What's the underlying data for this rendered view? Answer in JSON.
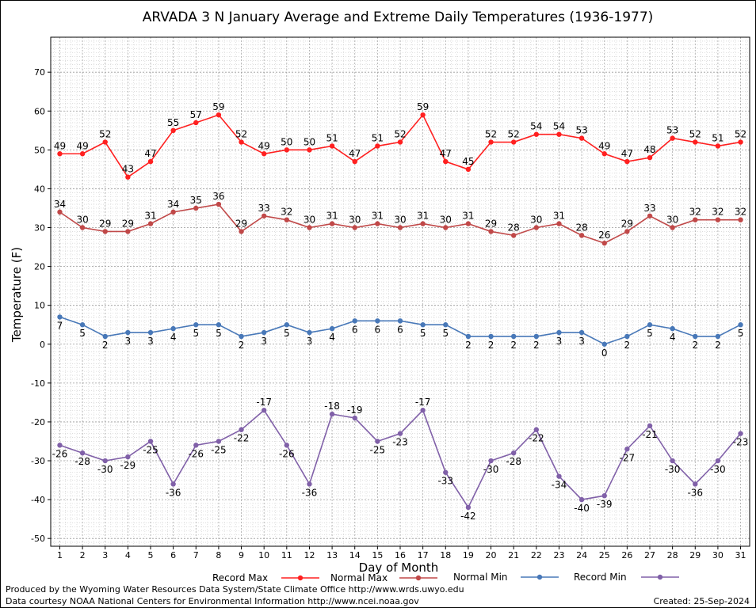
{
  "chart_data": {
    "type": "line",
    "title": "ARVADA 3 N January Average and Extreme Daily Temperatures (1936-1977)",
    "xlabel": "Day of Month",
    "ylabel": "Temperature (F)",
    "x": [
      1,
      2,
      3,
      4,
      5,
      6,
      7,
      8,
      9,
      10,
      11,
      12,
      13,
      14,
      15,
      16,
      17,
      18,
      19,
      20,
      21,
      22,
      23,
      24,
      25,
      26,
      27,
      28,
      29,
      30,
      31
    ],
    "xlim": [
      0.6,
      31.4
    ],
    "ylim": [
      -52,
      79
    ],
    "yticks": [
      -50,
      -40,
      -30,
      -20,
      -10,
      0,
      10,
      20,
      30,
      40,
      50,
      60,
      70
    ],
    "grid": true,
    "legend": "bottom",
    "series": [
      {
        "name": "Record Max",
        "color": "#ff2020",
        "values": [
          49,
          49,
          52,
          43,
          47,
          55,
          57,
          59,
          52,
          49,
          50,
          50,
          51,
          47,
          51,
          52,
          59,
          47,
          45,
          52,
          52,
          54,
          54,
          53,
          49,
          47,
          48,
          53,
          52,
          51,
          52
        ]
      },
      {
        "name": "Normal Max",
        "color": "#c04848",
        "values": [
          34,
          30,
          29,
          29,
          31,
          34,
          35,
          36,
          29,
          33,
          32,
          30,
          31,
          30,
          31,
          30,
          31,
          30,
          31,
          29,
          28,
          30,
          31,
          28,
          26,
          29,
          33,
          30,
          32,
          32,
          32
        ]
      },
      {
        "name": "Normal Min",
        "color": "#4878b8",
        "values": [
          7,
          5,
          2,
          3,
          3,
          4,
          5,
          5,
          2,
          3,
          5,
          3,
          4,
          6,
          6,
          6,
          5,
          5,
          2,
          2,
          2,
          2,
          3,
          3,
          0,
          2,
          5,
          4,
          2,
          2,
          5
        ]
      },
      {
        "name": "Record Min",
        "color": "#8060a8",
        "values": [
          -26,
          -28,
          -30,
          -29,
          -25,
          -36,
          -26,
          -25,
          -22,
          -17,
          -26,
          -36,
          -18,
          -19,
          -25,
          -23,
          -17,
          -33,
          -42,
          -30,
          -28,
          -22,
          -34,
          -40,
          -39,
          -27,
          -21,
          -30,
          -36,
          -30,
          -23
        ]
      }
    ]
  },
  "footer": {
    "produced_by": "Produced by the Wyoming Water Resources Data System/State Climate Office http://www.wrds.uwyo.edu",
    "data_courtesy": "Data courtesy NOAA National Centers for Environmental Information http://www.ncei.noaa.gov",
    "created": "Created:  25-Sep-2024"
  }
}
